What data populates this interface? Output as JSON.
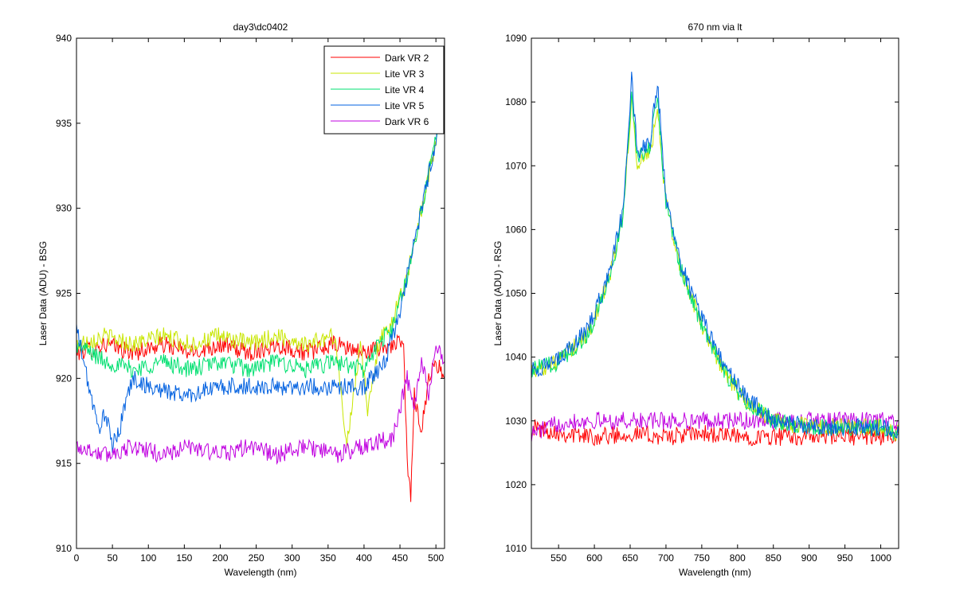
{
  "figure": {
    "background": "#ffffff"
  },
  "chart_data": [
    {
      "type": "line",
      "title": "day3\\dc0402",
      "xlabel": "Wavelength (nm)",
      "ylabel": "Laser Data (ADU) - BSG",
      "xlim": [
        0,
        512
      ],
      "ylim": [
        910,
        940
      ],
      "xticks": [
        0,
        50,
        100,
        150,
        200,
        250,
        300,
        350,
        400,
        450,
        500
      ],
      "yticks": [
        910,
        915,
        920,
        925,
        930,
        935,
        940
      ],
      "grid": false,
      "legend_position": "top-right",
      "series": [
        {
          "name": "Dark VR 2",
          "color": "#ff0000",
          "x": [
            0,
            40,
            80,
            120,
            160,
            200,
            240,
            280,
            320,
            360,
            400,
            440,
            455,
            460,
            465,
            470,
            480,
            490,
            500,
            512
          ],
          "y": [
            921.5,
            922,
            921.5,
            922,
            921.5,
            922,
            921.5,
            922,
            921.5,
            922,
            921.5,
            922,
            922,
            915,
            913,
            919,
            917,
            920,
            921,
            920
          ]
        },
        {
          "name": "Lite VR 3",
          "color": "#c8e600",
          "x": [
            0,
            40,
            80,
            120,
            160,
            200,
            240,
            280,
            320,
            360,
            375,
            385,
            395,
            405,
            420,
            440,
            460,
            480,
            500,
            512
          ],
          "y": [
            922,
            922.5,
            922,
            922.5,
            922,
            922.5,
            922,
            922.5,
            922,
            922.5,
            916,
            919,
            922,
            918,
            922,
            923.5,
            926,
            930,
            934,
            937
          ]
        },
        {
          "name": "Lite VR 4",
          "color": "#00e070",
          "x": [
            0,
            40,
            80,
            120,
            160,
            200,
            240,
            280,
            320,
            360,
            400,
            420,
            440,
            460,
            480,
            500,
            512
          ],
          "y": [
            922,
            921,
            920.5,
            921,
            920.5,
            921,
            920.5,
            921,
            920.5,
            921,
            920.5,
            922,
            923,
            926,
            930,
            934,
            937
          ]
        },
        {
          "name": "Lite VR 5",
          "color": "#0060e0",
          "x": [
            0,
            10,
            20,
            30,
            40,
            50,
            60,
            70,
            80,
            100,
            150,
            200,
            250,
            300,
            350,
            400,
            430,
            450,
            460,
            480,
            500,
            512
          ],
          "y": [
            923,
            921,
            919,
            917,
            918,
            916,
            917,
            919,
            920,
            919.5,
            919,
            919.5,
            919.5,
            919.5,
            919.5,
            919.5,
            921,
            924,
            926,
            930,
            934,
            937
          ]
        },
        {
          "name": "Dark VR 6",
          "color": "#c000e0",
          "x": [
            0,
            40,
            80,
            120,
            160,
            200,
            240,
            280,
            320,
            360,
            400,
            440,
            460,
            470,
            480,
            490,
            500,
            512
          ],
          "y": [
            916,
            915.5,
            916,
            915.5,
            916,
            915.5,
            916,
            915.5,
            916,
            915.5,
            916,
            916.5,
            920,
            918,
            921,
            919,
            922,
            921
          ]
        }
      ]
    },
    {
      "type": "line",
      "title": "670 nm via lt",
      "xlabel": "Wavelength (nm)",
      "ylabel": "Laser Data (ADU) - RSG",
      "xlim": [
        512,
        1025
      ],
      "ylim": [
        1010,
        1090
      ],
      "xticks": [
        550,
        600,
        650,
        700,
        750,
        800,
        850,
        900,
        950,
        1000
      ],
      "yticks": [
        1010,
        1020,
        1030,
        1040,
        1050,
        1060,
        1070,
        1080,
        1090
      ],
      "grid": false,
      "legend_position": "none",
      "series": [
        {
          "name": "",
          "color": "#ff0000",
          "x": [
            512,
            560,
            600,
            650,
            700,
            750,
            800,
            850,
            900,
            950,
            1000,
            1025
          ],
          "y": [
            1029,
            1028,
            1027.5,
            1028,
            1027.5,
            1028,
            1027.5,
            1027.5,
            1027.5,
            1027.5,
            1027.5,
            1028
          ]
        },
        {
          "name": "",
          "color": "#c000e0",
          "x": [
            512,
            560,
            600,
            650,
            700,
            750,
            800,
            850,
            900,
            950,
            1000,
            1025
          ],
          "y": [
            1028,
            1030,
            1030,
            1030,
            1030,
            1030,
            1030,
            1030,
            1030,
            1030,
            1030,
            1030
          ]
        },
        {
          "name": "",
          "color": "#c8e600",
          "x": [
            512,
            545,
            588,
            600,
            620,
            640,
            652,
            660,
            678,
            688,
            700,
            720,
            750,
            780,
            810,
            850,
            900,
            1000,
            1025
          ],
          "y": [
            1038,
            1039,
            1043,
            1046,
            1052,
            1062,
            1080,
            1070,
            1072,
            1079,
            1064,
            1054,
            1045,
            1038,
            1033,
            1030,
            1029,
            1029,
            1028
          ]
        },
        {
          "name": "",
          "color": "#00e070",
          "x": [
            512,
            545,
            588,
            600,
            620,
            640,
            652,
            660,
            678,
            688,
            700,
            720,
            750,
            780,
            810,
            850,
            900,
            1000,
            1025
          ],
          "y": [
            1038,
            1039,
            1043,
            1046,
            1052,
            1062,
            1082,
            1071,
            1073,
            1081,
            1064,
            1054,
            1045,
            1038,
            1033,
            1030,
            1029,
            1029,
            1028
          ]
        },
        {
          "name": "",
          "color": "#0060e0",
          "x": [
            512,
            545,
            588,
            600,
            620,
            640,
            652,
            660,
            678,
            688,
            700,
            720,
            750,
            780,
            810,
            850,
            900,
            1000,
            1025
          ],
          "y": [
            1038,
            1039,
            1044,
            1047,
            1053,
            1063,
            1084,
            1072,
            1074,
            1083,
            1065,
            1055,
            1046,
            1039,
            1034,
            1030,
            1029,
            1029,
            1028
          ]
        }
      ]
    }
  ]
}
